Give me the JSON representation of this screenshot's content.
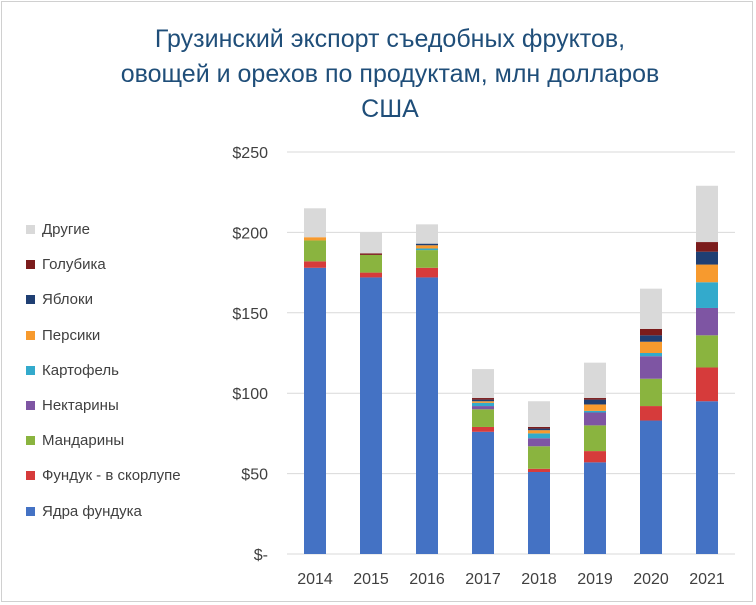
{
  "chart_data": {
    "type": "stacked-bar",
    "title": "Грузинский экспорт съедобных фруктов,\nовощей и орехов по продуктам, млн долларов\nСША",
    "categories": [
      "2014",
      "2015",
      "2016",
      "2017",
      "2018",
      "2019",
      "2020",
      "2021"
    ],
    "ylim": [
      0,
      250
    ],
    "y_ticks": [
      {
        "value": 0,
        "label": "$-"
      },
      {
        "value": 50,
        "label": "$50"
      },
      {
        "value": 100,
        "label": "$100"
      },
      {
        "value": 150,
        "label": "$150"
      },
      {
        "value": 200,
        "label": "$200"
      },
      {
        "value": 250,
        "label": "$250"
      }
    ],
    "grid": true,
    "legend_position": "left",
    "series": [
      {
        "name": "Ядра фундука",
        "color": "#4472c4",
        "values": [
          178,
          172,
          172,
          76,
          51,
          57,
          83,
          95
        ]
      },
      {
        "name": "Фундук - в скорлупе",
        "color": "#d63b3b",
        "values": [
          4,
          3,
          6,
          3,
          2,
          7,
          9,
          21
        ]
      },
      {
        "name": "Мандарины",
        "color": "#8ab43f",
        "values": [
          13,
          11,
          11,
          11,
          14,
          16,
          17,
          20
        ]
      },
      {
        "name": "Нектарины",
        "color": "#7e55a3",
        "values": [
          0,
          0,
          0,
          2,
          5,
          8,
          14,
          17
        ]
      },
      {
        "name": "Картофель",
        "color": "#33aacc",
        "values": [
          0,
          0,
          1,
          2,
          3,
          1,
          2,
          16
        ]
      },
      {
        "name": "Персики",
        "color": "#f79a2e",
        "values": [
          2,
          0,
          2,
          1,
          2,
          4,
          7,
          11
        ]
      },
      {
        "name": "Яблоки",
        "color": "#1f3f73",
        "values": [
          0,
          0,
          1,
          1,
          1,
          3,
          4,
          8
        ]
      },
      {
        "name": "Голубика",
        "color": "#7b1c1c",
        "values": [
          0,
          1,
          0,
          1,
          1,
          1,
          4,
          6
        ]
      },
      {
        "name": "Другие",
        "color": "#d9d9d9",
        "values": [
          18,
          13,
          12,
          18,
          16,
          22,
          25,
          35
        ]
      }
    ]
  }
}
